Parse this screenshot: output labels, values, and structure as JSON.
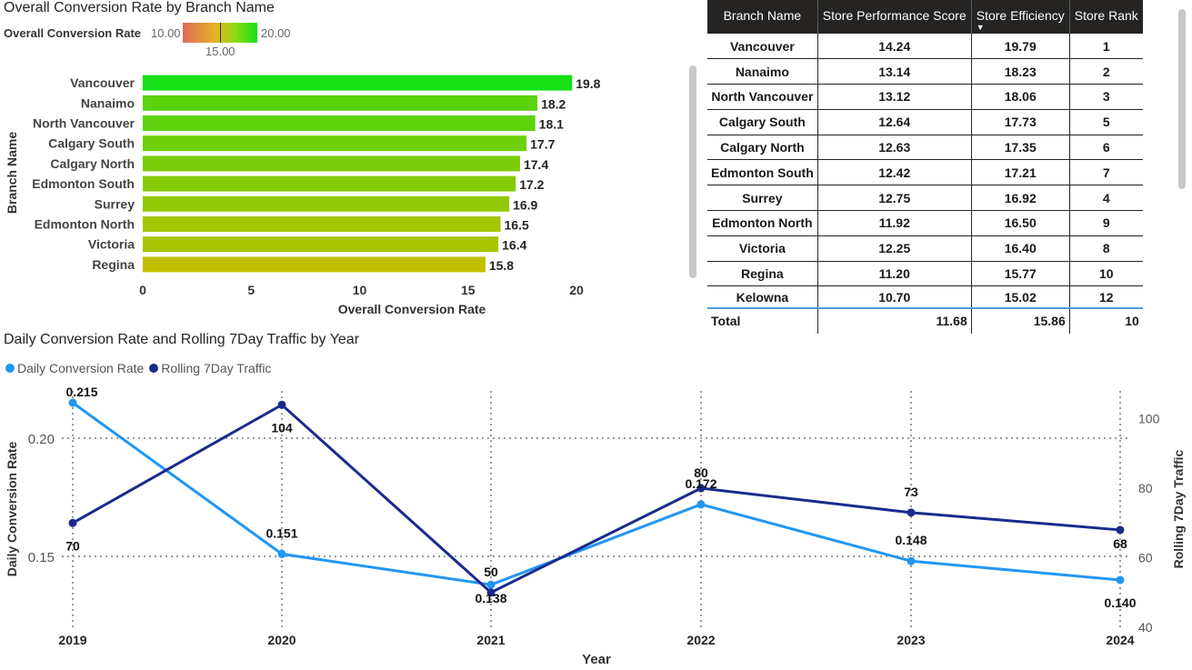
{
  "bar_visual": {
    "title": "Overall Conversion Rate by Branch Name",
    "legend": {
      "label": "Overall Conversion Rate",
      "min": "10.00",
      "max": "20.00",
      "mid": "15.00",
      "colors": {
        "low": "#e0685c",
        "mid": "#e6b520",
        "high": "#16e016"
      }
    }
  },
  "table_visual": {
    "columns": [
      "Branch Name",
      "Store Performance Score",
      "Store Efficiency",
      "Store Rank"
    ],
    "sorted_column": "Store Efficiency",
    "rows": [
      [
        "Vancouver",
        "14.24",
        "19.79",
        "1"
      ],
      [
        "Nanaimo",
        "13.14",
        "18.23",
        "2"
      ],
      [
        "North Vancouver",
        "13.12",
        "18.06",
        "3"
      ],
      [
        "Calgary South",
        "12.64",
        "17.73",
        "5"
      ],
      [
        "Calgary North",
        "12.63",
        "17.35",
        "6"
      ],
      [
        "Edmonton South",
        "12.42",
        "17.21",
        "7"
      ],
      [
        "Surrey",
        "12.75",
        "16.92",
        "4"
      ],
      [
        "Edmonton North",
        "11.92",
        "16.50",
        "9"
      ],
      [
        "Victoria",
        "12.25",
        "16.40",
        "8"
      ],
      [
        "Regina",
        "11.20",
        "15.77",
        "10"
      ],
      [
        "Kelowna",
        "10.70",
        "15.02",
        "12"
      ]
    ],
    "total": [
      "Total",
      "11.68",
      "15.86",
      "10"
    ]
  },
  "line_visual": {
    "title": "Daily Conversion Rate and Rolling 7Day Traffic by Year",
    "legend": [
      {
        "name": "Daily Conversion Rate",
        "color": "#2196f3"
      },
      {
        "name": "Rolling 7Day Traffic",
        "color": "#1a2a8c"
      }
    ]
  },
  "chart_data": [
    {
      "type": "bar",
      "orientation": "horizontal",
      "title": "Overall Conversion Rate by Branch Name",
      "xlabel": "Overall Conversion Rate",
      "ylabel": "Branch Name",
      "categories": [
        "Vancouver",
        "Nanaimo",
        "North Vancouver",
        "Calgary South",
        "Calgary North",
        "Edmonton South",
        "Surrey",
        "Edmonton North",
        "Victoria",
        "Regina"
      ],
      "values": [
        19.8,
        18.2,
        18.1,
        17.7,
        17.4,
        17.2,
        16.9,
        16.5,
        16.4,
        15.8
      ],
      "data_labels": [
        "19.8",
        "18.2",
        "18.1",
        "17.7",
        "17.4",
        "17.2",
        "16.9",
        "16.5",
        "16.4",
        "15.8"
      ],
      "xlim": [
        0,
        20
      ],
      "xticks": [
        0,
        5,
        10,
        15,
        20
      ],
      "color_scale": {
        "min": 10,
        "mid": 15,
        "max": 20
      },
      "grid": false
    },
    {
      "type": "line",
      "title": "Daily Conversion Rate and Rolling 7Day Traffic by Year",
      "xlabel": "Year",
      "ylabel": "Daily Conversion Rate",
      "y2label": "Rolling 7Day Traffic",
      "categories": [
        "2019",
        "2020",
        "2021",
        "2022",
        "2023",
        "2024"
      ],
      "series": [
        {
          "name": "Daily Conversion Rate",
          "axis": "left",
          "values": [
            0.215,
            0.151,
            0.138,
            0.172,
            0.148,
            0.14
          ],
          "labels": [
            "0.215",
            "0.151",
            "0.138",
            "0.172",
            "0.148",
            "0.140"
          ],
          "color": "#2196f3"
        },
        {
          "name": "Rolling 7Day Traffic",
          "axis": "right",
          "values": [
            70,
            104,
            50,
            80,
            73,
            68
          ],
          "labels": [
            "70",
            "104",
            "50",
            "80",
            "73",
            "68"
          ],
          "color": "#1a2a8c"
        }
      ],
      "ylim": [
        0.12,
        0.22
      ],
      "yticks": [
        "0.15",
        "0.20"
      ],
      "y2lim": [
        40,
        108
      ],
      "y2ticks": [
        "40",
        "60",
        "80",
        "100"
      ],
      "grid": true,
      "legend_position": "top-left"
    }
  ]
}
